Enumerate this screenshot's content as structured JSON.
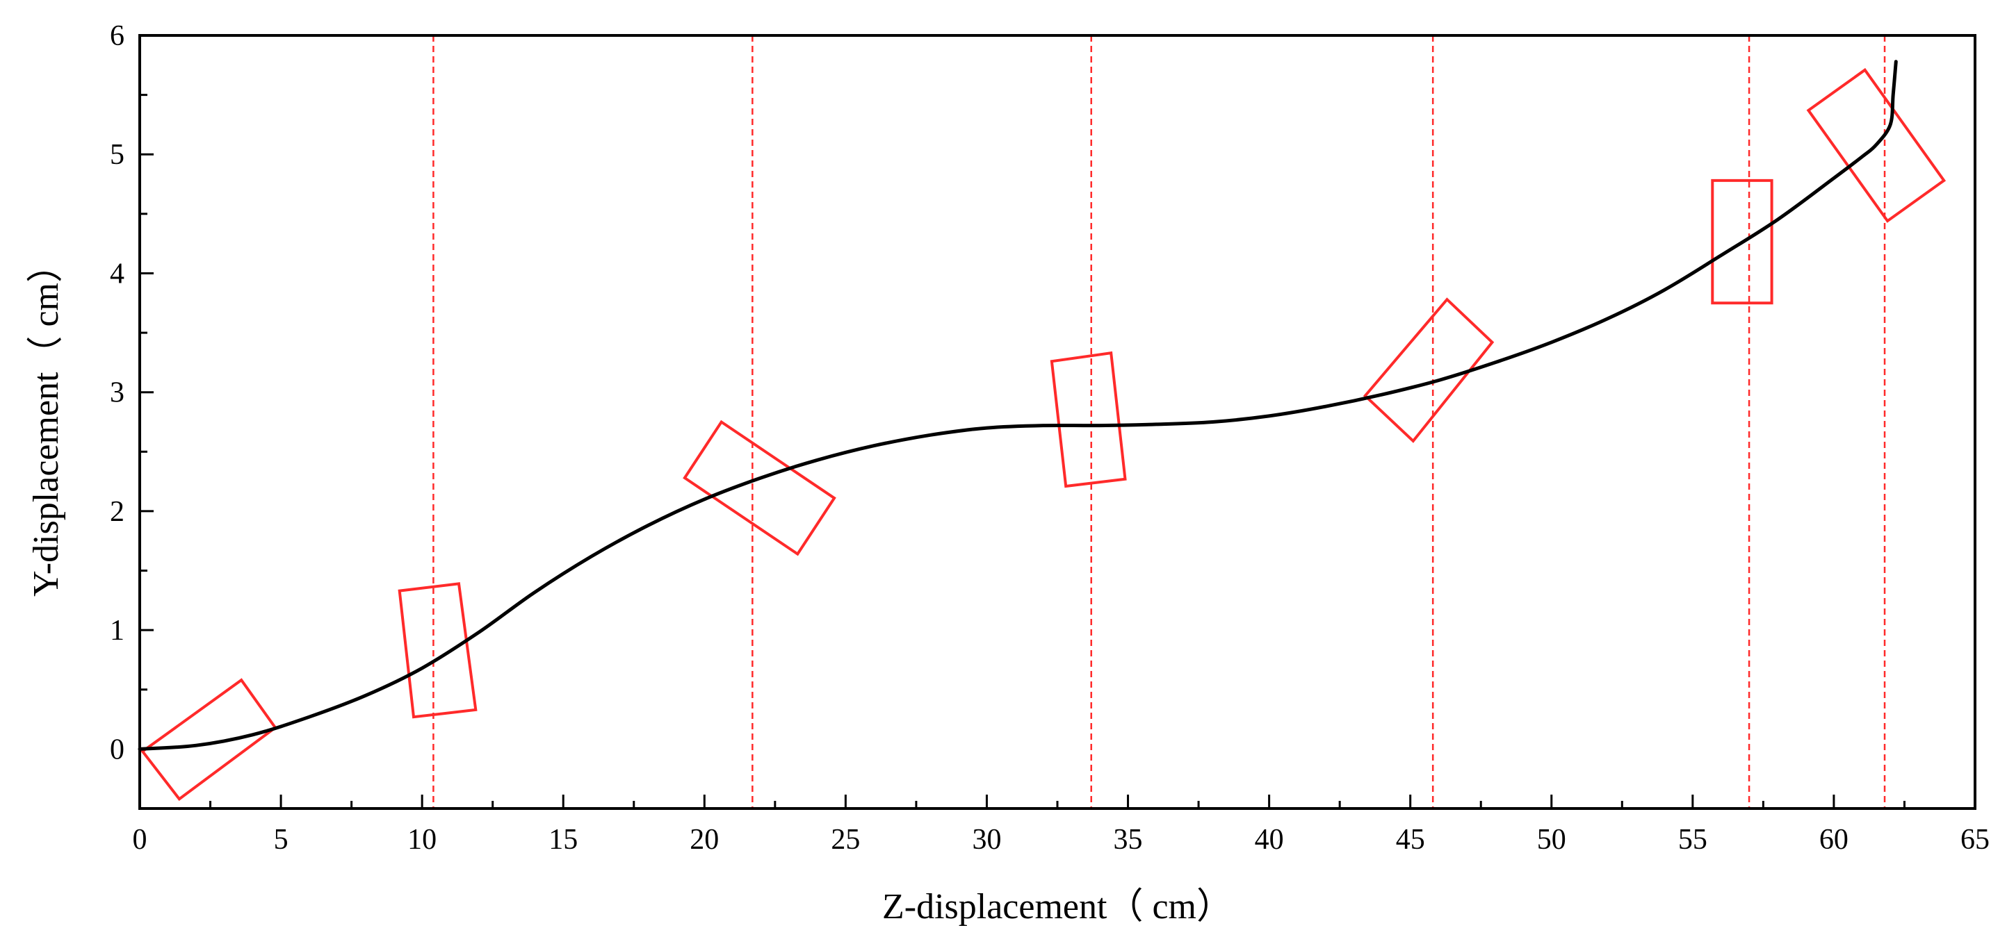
{
  "chart_data": {
    "type": "line",
    "title": "",
    "xlabel": "Z-displacement（ cm）",
    "ylabel": "Y-displacement（ cm）",
    "xlim": [
      0,
      65
    ],
    "ylim": [
      -0.5,
      6
    ],
    "x_ticks": [
      0,
      5,
      10,
      15,
      20,
      25,
      30,
      35,
      40,
      45,
      50,
      55,
      60,
      65
    ],
    "y_ticks": [
      0,
      1,
      2,
      3,
      4,
      5,
      6
    ],
    "grid": false,
    "legend": "none",
    "colors": {
      "trajectory": "#000000",
      "annotations": "#ff2a2a"
    },
    "series": [
      {
        "x": [
          0,
          2,
          4,
          6,
          8,
          10,
          12,
          14,
          16,
          18,
          20,
          22,
          24,
          26,
          28,
          30,
          32,
          34,
          36,
          38,
          40,
          42,
          44,
          46,
          48,
          50,
          52,
          54,
          56,
          58,
          60,
          61,
          61.5,
          62,
          62.1,
          62.2
        ],
        "values": [
          0,
          0.03,
          0.12,
          0.27,
          0.45,
          0.68,
          0.98,
          1.32,
          1.62,
          1.88,
          2.1,
          2.28,
          2.43,
          2.55,
          2.64,
          2.7,
          2.72,
          2.72,
          2.73,
          2.75,
          2.8,
          2.88,
          2.98,
          3.1,
          3.25,
          3.42,
          3.62,
          3.86,
          4.15,
          4.45,
          4.8,
          4.98,
          5.08,
          5.25,
          5.5,
          5.78
        ]
      }
    ],
    "vertical_markers": [
      10.4,
      21.7,
      33.7,
      45.8,
      57,
      61.8
    ],
    "orientation_boxes": [
      {
        "corners": [
          [
            0.1,
            -0.02
          ],
          [
            3.6,
            0.58
          ],
          [
            4.8,
            0.18
          ],
          [
            1.4,
            -0.42
          ]
        ]
      },
      {
        "corners": [
          [
            9.2,
            1.33
          ],
          [
            11.3,
            1.39
          ],
          [
            11.9,
            0.33
          ],
          [
            9.7,
            0.27
          ]
        ]
      },
      {
        "corners": [
          [
            19.3,
            2.28
          ],
          [
            20.6,
            2.75
          ],
          [
            24.6,
            2.11
          ],
          [
            23.3,
            1.64
          ]
        ]
      },
      {
        "corners": [
          [
            32.3,
            3.26
          ],
          [
            34.4,
            3.33
          ],
          [
            34.9,
            2.27
          ],
          [
            32.8,
            2.21
          ]
        ]
      },
      {
        "corners": [
          [
            43.4,
            2.97
          ],
          [
            45.1,
            2.59
          ],
          [
            47.9,
            3.42
          ],
          [
            46.3,
            3.78
          ]
        ]
      },
      {
        "corners": [
          [
            55.7,
            4.78
          ],
          [
            57.8,
            4.78
          ],
          [
            57.8,
            3.75
          ],
          [
            55.7,
            3.75
          ]
        ]
      },
      {
        "corners": [
          [
            59.1,
            5.37
          ],
          [
            61.1,
            5.71
          ],
          [
            63.9,
            4.78
          ],
          [
            61.9,
            4.44
          ]
        ]
      }
    ]
  }
}
